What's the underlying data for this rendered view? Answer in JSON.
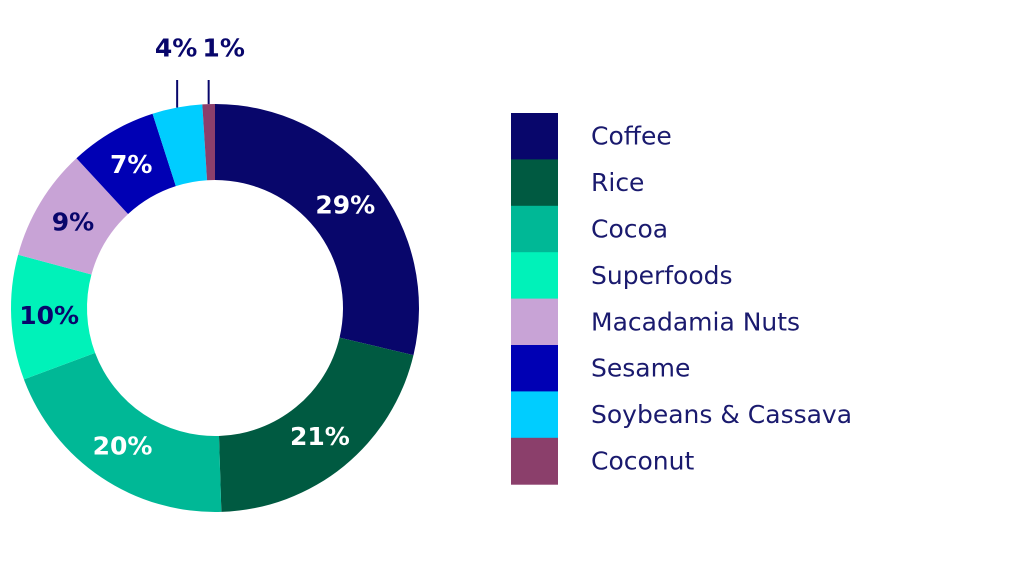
{
  "chart_data": {
    "type": "pie",
    "variant": "donut",
    "slices": [
      {
        "label": "Coffee",
        "value": 29,
        "display": "29%",
        "color": "#08066b",
        "label_color": "#ffffff"
      },
      {
        "label": "Rice",
        "value": 21,
        "display": "21%",
        "color": "#005a41",
        "label_color": "#ffffff"
      },
      {
        "label": "Cocoa",
        "value": 20,
        "display": "20%",
        "color": "#00b896",
        "label_color": "#ffffff"
      },
      {
        "label": "Superfoods",
        "value": 10,
        "display": "10%",
        "color": "#00f2b9",
        "label_color": "#08066b"
      },
      {
        "label": "Macadamia Nuts",
        "value": 9,
        "display": "9%",
        "color": "#c8a3d6",
        "label_color": "#08066b"
      },
      {
        "label": "Sesame",
        "value": 7,
        "display": "7%",
        "color": "#0000b4",
        "label_color": "#ffffff"
      },
      {
        "label": "Soybeans & Cassava",
        "value": 4,
        "display": "4%",
        "color": "#00cdff",
        "label_color": "#08066b"
      },
      {
        "label": "Coconut",
        "value": 1,
        "display": "1%",
        "color": "#8b3f6b",
        "label_color": "#08066b"
      }
    ],
    "legend_position": "right"
  }
}
